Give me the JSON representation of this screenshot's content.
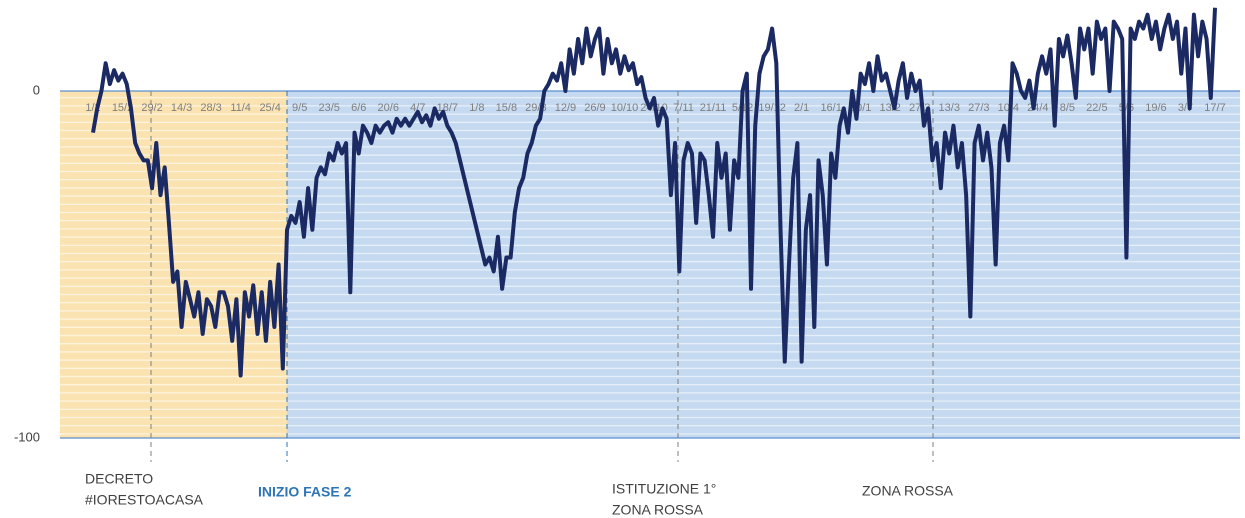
{
  "chart_data": {
    "type": "line",
    "categories": [
      "1/2",
      null,
      null,
      null,
      null,
      null,
      null,
      "15/2",
      null,
      null,
      null,
      null,
      null,
      null,
      "29/2",
      null,
      null,
      null,
      null,
      null,
      null,
      "14/3",
      null,
      null,
      null,
      null,
      null,
      null,
      "28/3",
      null,
      null,
      null,
      null,
      null,
      null,
      "11/4",
      null,
      null,
      null,
      null,
      null,
      null,
      "25/4",
      null,
      null,
      null,
      null,
      null,
      null,
      "9/5",
      null,
      null,
      null,
      null,
      null,
      null,
      "23/5",
      null,
      null,
      null,
      null,
      null,
      null,
      "6/6",
      null,
      null,
      null,
      null,
      null,
      null,
      "20/6",
      null,
      null,
      null,
      null,
      null,
      null,
      "4/7",
      null,
      null,
      null,
      null,
      null,
      null,
      "18/7",
      null,
      null,
      null,
      null,
      null,
      null,
      "1/8",
      null,
      null,
      null,
      null,
      null,
      null,
      "15/8",
      null,
      null,
      null,
      null,
      null,
      null,
      "29/8",
      null,
      null,
      null,
      null,
      null,
      null,
      "12/9",
      null,
      null,
      null,
      null,
      null,
      null,
      "26/9",
      null,
      null,
      null,
      null,
      null,
      null,
      "10/10",
      null,
      null,
      null,
      null,
      null,
      null,
      "24/10",
      null,
      null,
      null,
      null,
      null,
      null,
      "7/11",
      null,
      null,
      null,
      null,
      null,
      null,
      "21/11",
      null,
      null,
      null,
      null,
      null,
      null,
      "5/12",
      null,
      null,
      null,
      null,
      null,
      null,
      "19/12",
      null,
      null,
      null,
      null,
      null,
      null,
      "2/1",
      null,
      null,
      null,
      null,
      null,
      null,
      "16/1",
      null,
      null,
      null,
      null,
      null,
      null,
      "30/1",
      null,
      null,
      null,
      null,
      null,
      null,
      "13/2",
      null,
      null,
      null,
      null,
      null,
      null,
      "27/2",
      null,
      null,
      null,
      null,
      null,
      null,
      "13/3",
      null,
      null,
      null,
      null,
      null,
      null,
      "27/3",
      null,
      null,
      null,
      null,
      null,
      null,
      "10/4",
      null,
      null,
      null,
      null,
      null,
      null,
      "24/4",
      null,
      null,
      null,
      null,
      null,
      null,
      "8/5",
      null,
      null,
      null,
      null,
      null,
      null,
      "22/5",
      null,
      null,
      null,
      null,
      null,
      null,
      "5/6",
      null,
      null,
      null,
      null,
      null,
      null,
      "19/6",
      null,
      null,
      null,
      null,
      null,
      null,
      "3/7",
      null,
      null,
      null,
      null,
      null,
      null,
      "17/7"
    ],
    "values": [
      -12,
      -5,
      0,
      8,
      2,
      6,
      3,
      5,
      2,
      -5,
      -15,
      -18,
      -20,
      -20,
      -28,
      -15,
      -30,
      -22,
      -38,
      -55,
      -52,
      -68,
      -55,
      -60,
      -65,
      -58,
      -70,
      -60,
      -62,
      -68,
      -58,
      -58,
      -62,
      -72,
      -60,
      -82,
      -58,
      -65,
      -56,
      -70,
      -58,
      -72,
      -55,
      -68,
      -50,
      -80,
      -40,
      -36,
      -38,
      -32,
      -42,
      -28,
      -40,
      -25,
      -22,
      -24,
      -18,
      -20,
      -15,
      -18,
      -15,
      -58,
      -12,
      -18,
      -10,
      -12,
      -15,
      -10,
      -12,
      -10,
      -9,
      -12,
      -8,
      -10,
      -8,
      -10,
      -8,
      -6,
      -9,
      -7,
      -10,
      -5,
      -8,
      -6,
      -10,
      -12,
      -15,
      -20,
      -25,
      -30,
      -35,
      -40,
      -45,
      -50,
      -48,
      -52,
      -42,
      -57,
      -48,
      -48,
      -35,
      -28,
      -25,
      -18,
      -15,
      -10,
      -8,
      0,
      2,
      5,
      3,
      8,
      0,
      12,
      5,
      15,
      8,
      18,
      10,
      15,
      18,
      5,
      15,
      8,
      12,
      5,
      10,
      6,
      8,
      2,
      4,
      -2,
      -5,
      -2,
      -10,
      -5,
      -8,
      -30,
      -15,
      -52,
      -20,
      -15,
      -18,
      -38,
      -18,
      -20,
      -30,
      -42,
      -15,
      -25,
      -18,
      -40,
      -20,
      -25,
      0,
      5,
      -57,
      -10,
      5,
      10,
      12,
      18,
      8,
      -40,
      -78,
      -50,
      -25,
      -15,
      -78,
      -40,
      -30,
      -68,
      -20,
      -30,
      -50,
      -18,
      -25,
      -10,
      -5,
      -12,
      0,
      -8,
      5,
      2,
      8,
      0,
      10,
      3,
      5,
      0,
      -5,
      3,
      8,
      -2,
      5,
      0,
      3,
      -10,
      -5,
      -20,
      -15,
      -28,
      -12,
      -18,
      -10,
      -22,
      -15,
      -30,
      -65,
      -15,
      -10,
      -20,
      -12,
      -22,
      -50,
      -15,
      -10,
      -20,
      8,
      5,
      0,
      -2,
      3,
      -5,
      5,
      10,
      5,
      12,
      -10,
      15,
      10,
      16,
      8,
      -2,
      18,
      12,
      18,
      5,
      20,
      15,
      18,
      0,
      20,
      18,
      15,
      -48,
      18,
      15,
      20,
      18,
      22,
      15,
      20,
      12,
      18,
      22,
      15,
      20,
      5,
      18,
      -5,
      22,
      10,
      20,
      15,
      -2,
      24
    ],
    "color": "#1b2a63",
    "ylim": [
      -100,
      25
    ],
    "yticks": [
      0,
      -100
    ],
    "annotations": [
      {
        "text": [
          "DECRETO",
          "#IORESTOACASA"
        ]
      },
      {
        "text": [
          "INIZIO FASE 2"
        ]
      },
      {
        "text": [
          "ISTITUZIONE 1°",
          "ZONA ROSSA"
        ]
      },
      {
        "text": [
          "ZONA ROSSA"
        ]
      }
    ]
  }
}
